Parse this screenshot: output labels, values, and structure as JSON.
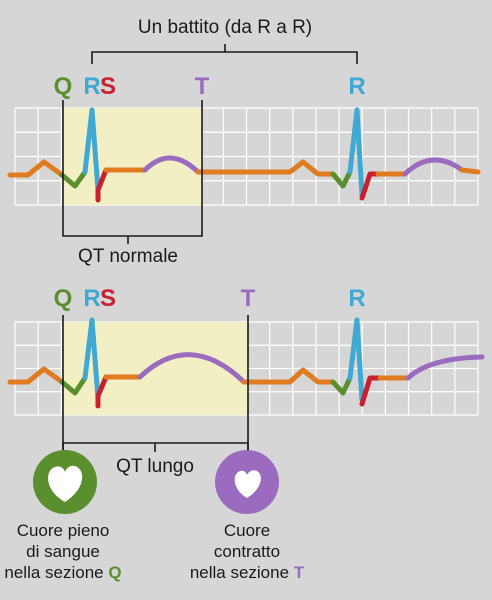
{
  "header": {
    "title": "Un battito (da R a R)"
  },
  "strips": [
    {
      "labels": {
        "q": "Q",
        "r": "R",
        "s": "S",
        "t": "T",
        "r2": "R"
      },
      "interval": "QT normale"
    },
    {
      "labels": {
        "q": "Q",
        "r": "R",
        "s": "S",
        "t": "T",
        "r2": "R"
      },
      "interval": "QT lungo"
    }
  ],
  "captions": [
    {
      "lines": [
        "Cuore pieno",
        "di sangue",
        "nella sezione"
      ],
      "letter": "Q"
    },
    {
      "lines": [
        "Cuore",
        "contratto",
        "nella sezione"
      ],
      "letter": "T"
    }
  ]
}
